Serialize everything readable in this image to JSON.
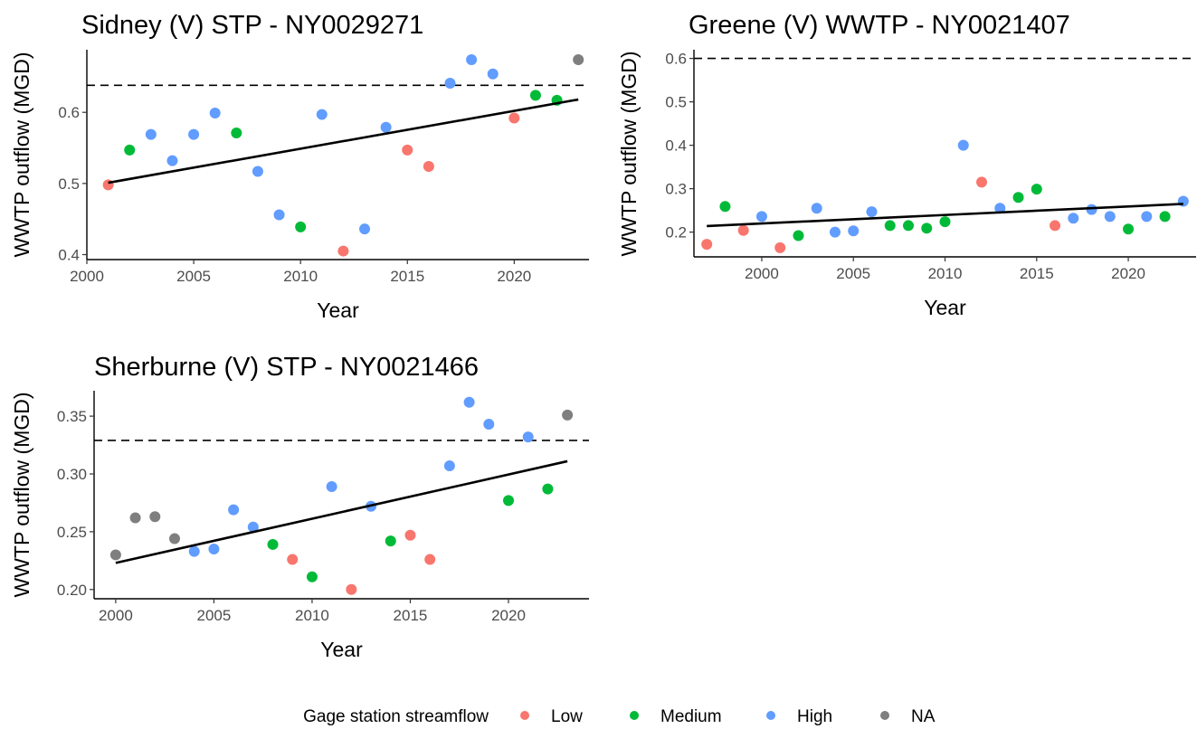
{
  "legend": {
    "title": "Gage station streamflow",
    "entries": [
      {
        "key": "Low",
        "label": "Low",
        "color": "#F8766D"
      },
      {
        "key": "Medium",
        "label": "Medium",
        "color": "#00BA38"
      },
      {
        "key": "High",
        "label": "High",
        "color": "#619CFF"
      },
      {
        "key": "NA",
        "label": "NA",
        "color": "#7F7F7F"
      }
    ],
    "placement": "bottom"
  },
  "chart_data": [
    {
      "type": "scatter",
      "title": "Sidney (V) STP - NY0029271",
      "xlabel": "Year",
      "ylabel": "WWTP outflow (MGD)",
      "xlim": [
        2000,
        2023.5
      ],
      "ylim": [
        0.393,
        0.688
      ],
      "xticks": [
        2000,
        2005,
        2010,
        2015,
        2020
      ],
      "yticks": [
        0.4,
        0.5,
        0.6
      ],
      "ytick_labels": [
        "0.4",
        "0.5",
        "0.6"
      ],
      "reference_line": 0.638,
      "trend": {
        "x": [
          2001,
          2023
        ],
        "y": [
          0.501,
          0.618
        ]
      },
      "points": [
        {
          "x": 2001,
          "y": 0.498,
          "flow": "Low"
        },
        {
          "x": 2002,
          "y": 0.547,
          "flow": "Medium"
        },
        {
          "x": 2003,
          "y": 0.569,
          "flow": "High"
        },
        {
          "x": 2004,
          "y": 0.532,
          "flow": "High"
        },
        {
          "x": 2005,
          "y": 0.569,
          "flow": "High"
        },
        {
          "x": 2006,
          "y": 0.599,
          "flow": "High"
        },
        {
          "x": 2007,
          "y": 0.571,
          "flow": "Medium"
        },
        {
          "x": 2008,
          "y": 0.517,
          "flow": "High"
        },
        {
          "x": 2009,
          "y": 0.456,
          "flow": "High"
        },
        {
          "x": 2010,
          "y": 0.439,
          "flow": "Medium"
        },
        {
          "x": 2011,
          "y": 0.597,
          "flow": "High"
        },
        {
          "x": 2012,
          "y": 0.405,
          "flow": "Low"
        },
        {
          "x": 2013,
          "y": 0.436,
          "flow": "High"
        },
        {
          "x": 2014,
          "y": 0.579,
          "flow": "High"
        },
        {
          "x": 2015,
          "y": 0.547,
          "flow": "Low"
        },
        {
          "x": 2016,
          "y": 0.524,
          "flow": "Low"
        },
        {
          "x": 2017,
          "y": 0.641,
          "flow": "High"
        },
        {
          "x": 2018,
          "y": 0.674,
          "flow": "High"
        },
        {
          "x": 2019,
          "y": 0.654,
          "flow": "High"
        },
        {
          "x": 2020,
          "y": 0.592,
          "flow": "Low"
        },
        {
          "x": 2021,
          "y": 0.624,
          "flow": "Medium"
        },
        {
          "x": 2022,
          "y": 0.617,
          "flow": "Medium"
        },
        {
          "x": 2023,
          "y": 0.674,
          "flow": "NA"
        }
      ]
    },
    {
      "type": "scatter",
      "title": "Greene (V) WWTP - NY0021407",
      "xlabel": "Year",
      "ylabel": "WWTP outflow (MGD)",
      "xlim": [
        1996.3,
        2023.7
      ],
      "ylim": [
        0.143,
        0.62
      ],
      "xticks": [
        2000,
        2005,
        2010,
        2015,
        2020
      ],
      "yticks": [
        0.2,
        0.3,
        0.4,
        0.5,
        0.6
      ],
      "ytick_labels": [
        "0.2",
        "0.3",
        "0.4",
        "0.5",
        "0.6"
      ],
      "reference_line": 0.6,
      "trend": {
        "x": [
          1997,
          2023
        ],
        "y": [
          0.214,
          0.265
        ]
      },
      "points": [
        {
          "x": 1997,
          "y": 0.172,
          "flow": "Low"
        },
        {
          "x": 1998,
          "y": 0.259,
          "flow": "Medium"
        },
        {
          "x": 1999,
          "y": 0.204,
          "flow": "Low"
        },
        {
          "x": 2000,
          "y": 0.236,
          "flow": "High"
        },
        {
          "x": 2001,
          "y": 0.164,
          "flow": "Low"
        },
        {
          "x": 2002,
          "y": 0.192,
          "flow": "Medium"
        },
        {
          "x": 2003,
          "y": 0.255,
          "flow": "High"
        },
        {
          "x": 2004,
          "y": 0.2,
          "flow": "High"
        },
        {
          "x": 2005,
          "y": 0.203,
          "flow": "High"
        },
        {
          "x": 2006,
          "y": 0.247,
          "flow": "High"
        },
        {
          "x": 2007,
          "y": 0.215,
          "flow": "Medium"
        },
        {
          "x": 2008,
          "y": 0.215,
          "flow": "Medium"
        },
        {
          "x": 2009,
          "y": 0.209,
          "flow": "Medium"
        },
        {
          "x": 2010,
          "y": 0.224,
          "flow": "Medium"
        },
        {
          "x": 2011,
          "y": 0.4,
          "flow": "High"
        },
        {
          "x": 2012,
          "y": 0.315,
          "flow": "Low"
        },
        {
          "x": 2013,
          "y": 0.255,
          "flow": "High"
        },
        {
          "x": 2014,
          "y": 0.28,
          "flow": "Medium"
        },
        {
          "x": 2015,
          "y": 0.299,
          "flow": "Medium"
        },
        {
          "x": 2016,
          "y": 0.215,
          "flow": "Low"
        },
        {
          "x": 2017,
          "y": 0.232,
          "flow": "High"
        },
        {
          "x": 2018,
          "y": 0.252,
          "flow": "High"
        },
        {
          "x": 2019,
          "y": 0.236,
          "flow": "High"
        },
        {
          "x": 2020,
          "y": 0.207,
          "flow": "Medium"
        },
        {
          "x": 2021,
          "y": 0.236,
          "flow": "High"
        },
        {
          "x": 2022,
          "y": 0.236,
          "flow": "Medium"
        },
        {
          "x": 2023,
          "y": 0.271,
          "flow": "High"
        }
      ]
    },
    {
      "type": "scatter",
      "title": "Sherburne (V) STP - NY0021466",
      "xlabel": "Year",
      "ylabel": "WWTP outflow (MGD)",
      "xlim": [
        1998.9,
        2024.1
      ],
      "ylim": [
        0.192,
        0.372
      ],
      "xticks": [
        2000,
        2005,
        2010,
        2015,
        2020
      ],
      "yticks": [
        0.2,
        0.25,
        0.3,
        0.35
      ],
      "ytick_labels": [
        "0.20",
        "0.25",
        "0.30",
        "0.35"
      ],
      "reference_line": 0.329,
      "trend": {
        "x": [
          2000,
          2023
        ],
        "y": [
          0.223,
          0.311
        ]
      },
      "points": [
        {
          "x": 2000,
          "y": 0.23,
          "flow": "NA"
        },
        {
          "x": 2001,
          "y": 0.262,
          "flow": "NA"
        },
        {
          "x": 2002,
          "y": 0.263,
          "flow": "NA"
        },
        {
          "x": 2003,
          "y": 0.244,
          "flow": "NA"
        },
        {
          "x": 2004,
          "y": 0.233,
          "flow": "High"
        },
        {
          "x": 2005,
          "y": 0.235,
          "flow": "High"
        },
        {
          "x": 2006,
          "y": 0.269,
          "flow": "High"
        },
        {
          "x": 2007,
          "y": 0.254,
          "flow": "High"
        },
        {
          "x": 2008,
          "y": 0.239,
          "flow": "Medium"
        },
        {
          "x": 2009,
          "y": 0.226,
          "flow": "Low"
        },
        {
          "x": 2010,
          "y": 0.211,
          "flow": "Medium"
        },
        {
          "x": 2011,
          "y": 0.289,
          "flow": "High"
        },
        {
          "x": 2012,
          "y": 0.2,
          "flow": "Low"
        },
        {
          "x": 2013,
          "y": 0.272,
          "flow": "High"
        },
        {
          "x": 2014,
          "y": 0.242,
          "flow": "Medium"
        },
        {
          "x": 2015,
          "y": 0.247,
          "flow": "Low"
        },
        {
          "x": 2016,
          "y": 0.226,
          "flow": "Low"
        },
        {
          "x": 2017,
          "y": 0.307,
          "flow": "High"
        },
        {
          "x": 2018,
          "y": 0.362,
          "flow": "High"
        },
        {
          "x": 2019,
          "y": 0.343,
          "flow": "High"
        },
        {
          "x": 2020,
          "y": 0.277,
          "flow": "Medium"
        },
        {
          "x": 2021,
          "y": 0.332,
          "flow": "High"
        },
        {
          "x": 2022,
          "y": 0.287,
          "flow": "Medium"
        },
        {
          "x": 2023,
          "y": 0.351,
          "flow": "NA"
        }
      ]
    }
  ]
}
